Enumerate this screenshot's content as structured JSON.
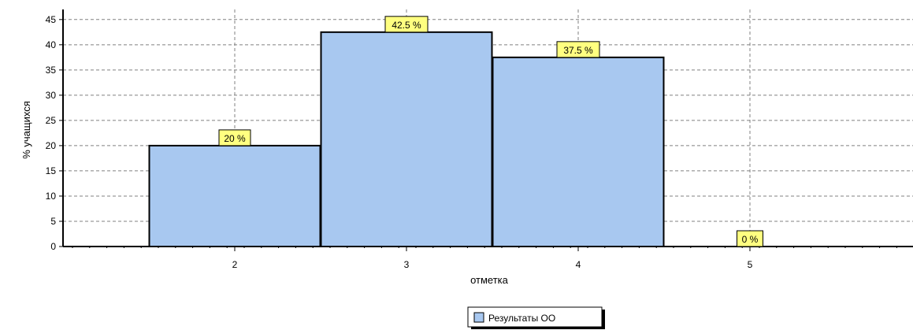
{
  "chart_data": {
    "type": "bar",
    "categories": [
      "2",
      "3",
      "4",
      "5"
    ],
    "series": [
      {
        "name": "Результаты ОО",
        "values": [
          20,
          42.5,
          37.5,
          0
        ],
        "color": "#a8c8f0"
      }
    ],
    "data_labels": [
      "20 %",
      "42.5 %",
      "37.5 %",
      "0 %"
    ],
    "xlabel": "отметка",
    "ylabel": "% учащихся",
    "ylim": [
      0,
      47
    ],
    "yticks": [
      0,
      5,
      10,
      15,
      20,
      25,
      30,
      35,
      40,
      45
    ],
    "grid": true,
    "legend_position": "bottom",
    "label_background": "#ffff80"
  }
}
